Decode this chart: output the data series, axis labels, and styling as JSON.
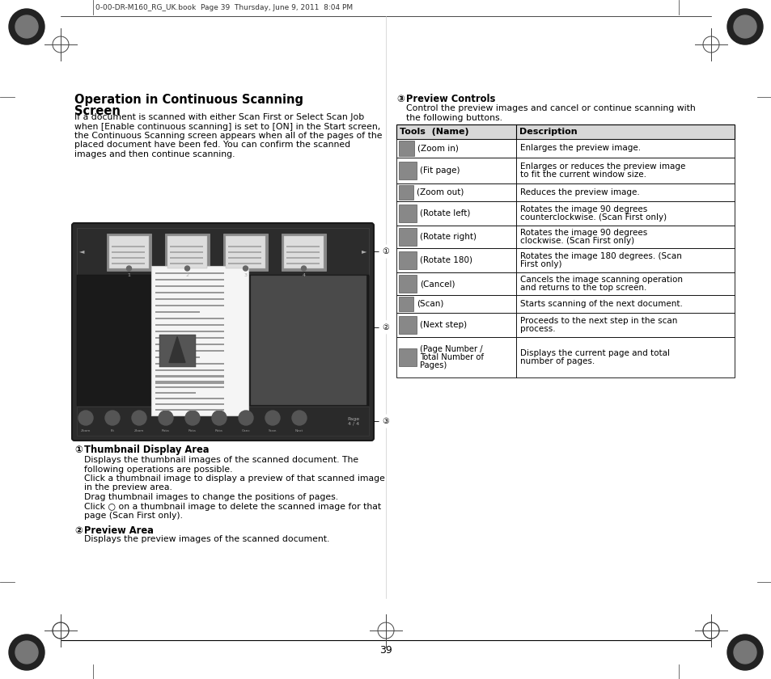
{
  "bg_color": "#ffffff",
  "title": "Operation in Continuous Scanning\nScreen",
  "intro_text": "If a document is scanned with either Scan First or Select Scan Job\nwhen [Enable continuous scanning] is set to [ON] in the Start screen,\nthe Continuous Scanning screen appears when all of the pages of the\nplaced document have been fed. You can confirm the scanned\nimages and then continue scanning.",
  "section1_title": "① Thumbnail Display Area",
  "section1_lines": [
    "Displays the thumbnail images of the scanned document. The",
    "following operations are possible.",
    "Click a thumbnail image to display a preview of that scanned image",
    "in the preview area.",
    "Drag thumbnail images to change the positions of pages.",
    "Click ○ on a thumbnail image to delete the scanned image for that",
    "page (Scan First only)."
  ],
  "section2_title": "② Preview Area",
  "section2_text": "Displays the preview images of the scanned document.",
  "section3_title": "③ Preview Controls",
  "section3_intro": "Control the preview images and cancel or continue scanning with\nthe following buttons.",
  "table_header_col1": "Tools  (Name)",
  "table_header_col2": "Description",
  "table_rows": [
    [
      "(Zoom in)",
      "Enlarges the preview image."
    ],
    [
      "(Fit page)",
      "Enlarges or reduces the preview image\nto fit the current window size."
    ],
    [
      "(Zoom out)",
      "Reduces the preview image."
    ],
    [
      "(Rotate left)",
      "Rotates the image 90 degrees\ncounterclockwise. (Scan First only)"
    ],
    [
      "(Rotate right)",
      "Rotates the image 90 degrees\nclockwise. (Scan First only)"
    ],
    [
      "(Rotate 180)",
      "Rotates the image 180 degrees. (Scan\nFirst only)"
    ],
    [
      "(Cancel)",
      "Cancels the image scanning operation\nand returns to the top screen."
    ],
    [
      "(Scan)",
      "Starts scanning of the next document."
    ],
    [
      "(Next step)",
      "Proceeds to the next step in the scan\nprocess."
    ],
    [
      "(Page Number /\nTotal Number of\nPages)",
      "Displays the current page and total\nnumber of pages."
    ]
  ],
  "page_number": "39",
  "header_text": "0-00-DR-M160_RG_UK.book  Page 39  Thursday, June 9, 2011  8:04 PM",
  "table_border": "#000000",
  "table_header_bg": "#d8d8d8",
  "font_color": "#000000",
  "title_font_size": 10.5,
  "body_font_size": 7.8,
  "small_font_size": 7.0,
  "header_font_size": 6.5
}
